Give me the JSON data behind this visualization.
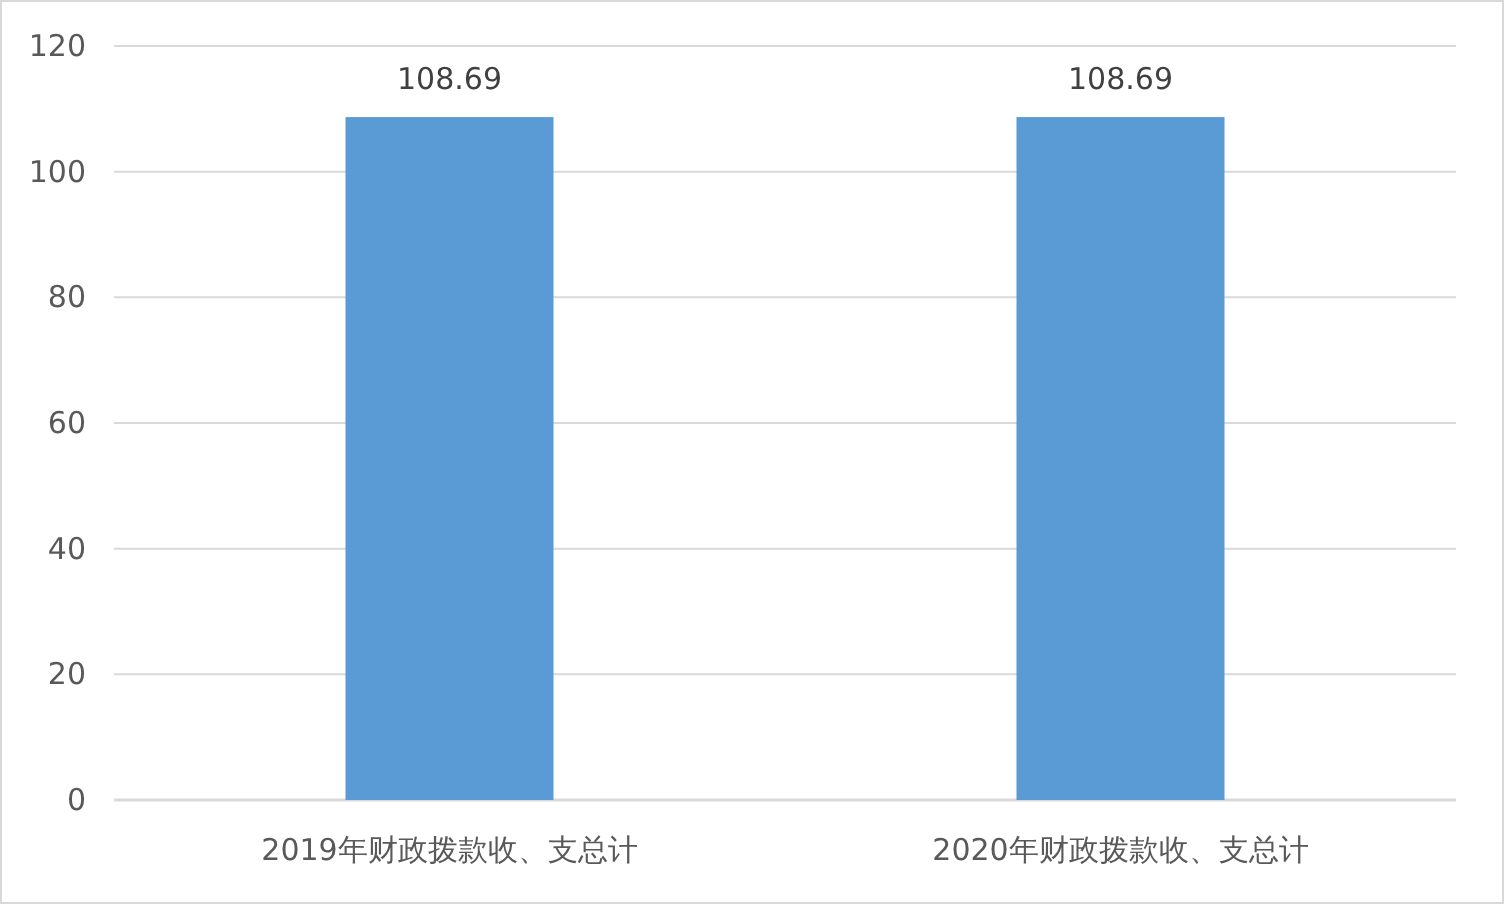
{
  "chart_data": {
    "type": "bar",
    "categories": [
      "2019年财政拨款收、支总计",
      "2020年财政拨款收、支总计"
    ],
    "values": [
      108.69,
      108.69
    ],
    "color": "#5b9bd5",
    "ylim": [
      0,
      120
    ],
    "yticks": [
      0,
      20,
      40,
      60,
      80,
      100,
      120
    ],
    "grid": "y",
    "data_labels": true
  }
}
